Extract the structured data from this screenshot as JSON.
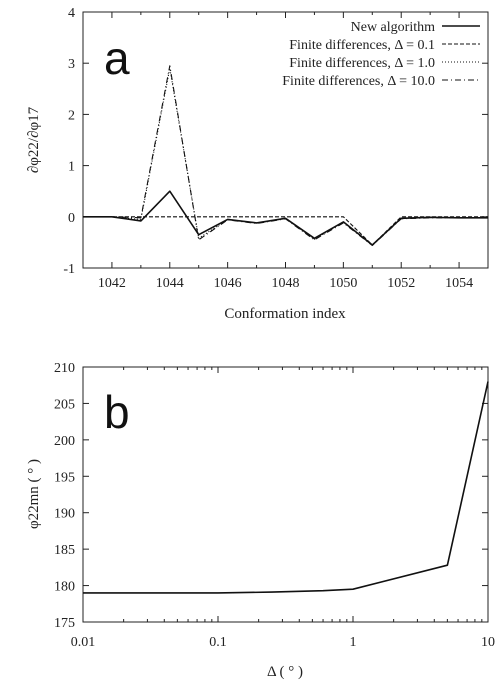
{
  "chart_data": [
    {
      "type": "line",
      "panel_label": "a",
      "xlabel": "Conformation index",
      "ylabel": "∂φ22/∂φ17",
      "xlim": [
        1041,
        1055
      ],
      "ylim": [
        -1,
        4
      ],
      "x_ticks": [
        1042,
        1044,
        1046,
        1048,
        1050,
        1052,
        1054
      ],
      "y_ticks": [
        -1,
        0,
        1,
        2,
        3,
        4
      ],
      "legend_position": "top-right",
      "series": [
        {
          "name": "New algorithm",
          "style": "solid",
          "x": [
            1041,
            1042,
            1043,
            1044,
            1045,
            1046,
            1047,
            1048,
            1049,
            1050,
            1051,
            1052,
            1053,
            1054,
            1055
          ],
          "y": [
            0,
            0,
            -0.08,
            0.5,
            -0.35,
            -0.05,
            -0.12,
            -0.03,
            -0.42,
            -0.1,
            -0.55,
            -0.03,
            -0.01,
            -0.02,
            -0.02
          ]
        },
        {
          "name": "Finite differences, Δ = 0.1",
          "style": "dashed",
          "x": [
            1041,
            1042,
            1043,
            1044,
            1045,
            1046,
            1047,
            1048,
            1049,
            1050,
            1051,
            1052,
            1053,
            1054,
            1055
          ],
          "y": [
            0,
            0,
            0,
            0,
            0,
            0,
            0,
            0,
            0,
            0,
            -0.55,
            0,
            0,
            0,
            0
          ]
        },
        {
          "name": "Finite differences, Δ = 1.0",
          "style": "dotted",
          "x": [
            1041,
            1042,
            1043,
            1044,
            1045,
            1046,
            1047,
            1048,
            1049,
            1050,
            1051,
            1052,
            1053,
            1054,
            1055
          ],
          "y": [
            0,
            0,
            -0.05,
            2.9,
            -0.42,
            -0.05,
            -0.12,
            -0.03,
            -0.44,
            -0.1,
            -0.55,
            -0.03,
            -0.01,
            -0.02,
            -0.02
          ]
        },
        {
          "name": "Finite differences, Δ = 10.0",
          "style": "dashdot",
          "x": [
            1041,
            1042,
            1043,
            1044,
            1045,
            1046,
            1047,
            1048,
            1049,
            1050,
            1051,
            1052,
            1053,
            1054,
            1055
          ],
          "y": [
            0,
            0,
            -0.02,
            2.95,
            -0.45,
            -0.06,
            -0.13,
            -0.04,
            -0.45,
            -0.12,
            -0.56,
            -0.04,
            -0.02,
            -0.02,
            -0.02
          ]
        }
      ]
    },
    {
      "type": "line",
      "panel_label": "b",
      "xlabel": "Δ ( ° )",
      "ylabel": "φ22mn ( ° )",
      "xscale": "log",
      "xlim": [
        0.01,
        10
      ],
      "ylim": [
        175,
        210
      ],
      "x_ticks": [
        0.01,
        0.1,
        1,
        10
      ],
      "x_tick_labels": [
        "0.01",
        "0.1",
        "1",
        "10"
      ],
      "y_ticks": [
        175,
        180,
        185,
        190,
        195,
        200,
        205,
        210
      ],
      "series": [
        {
          "style": "solid",
          "x": [
            0.01,
            0.05,
            0.1,
            0.25,
            0.6,
            1,
            5,
            10
          ],
          "y": [
            179,
            179,
            179,
            179.1,
            179.3,
            179.5,
            182.8,
            208
          ]
        }
      ]
    }
  ]
}
